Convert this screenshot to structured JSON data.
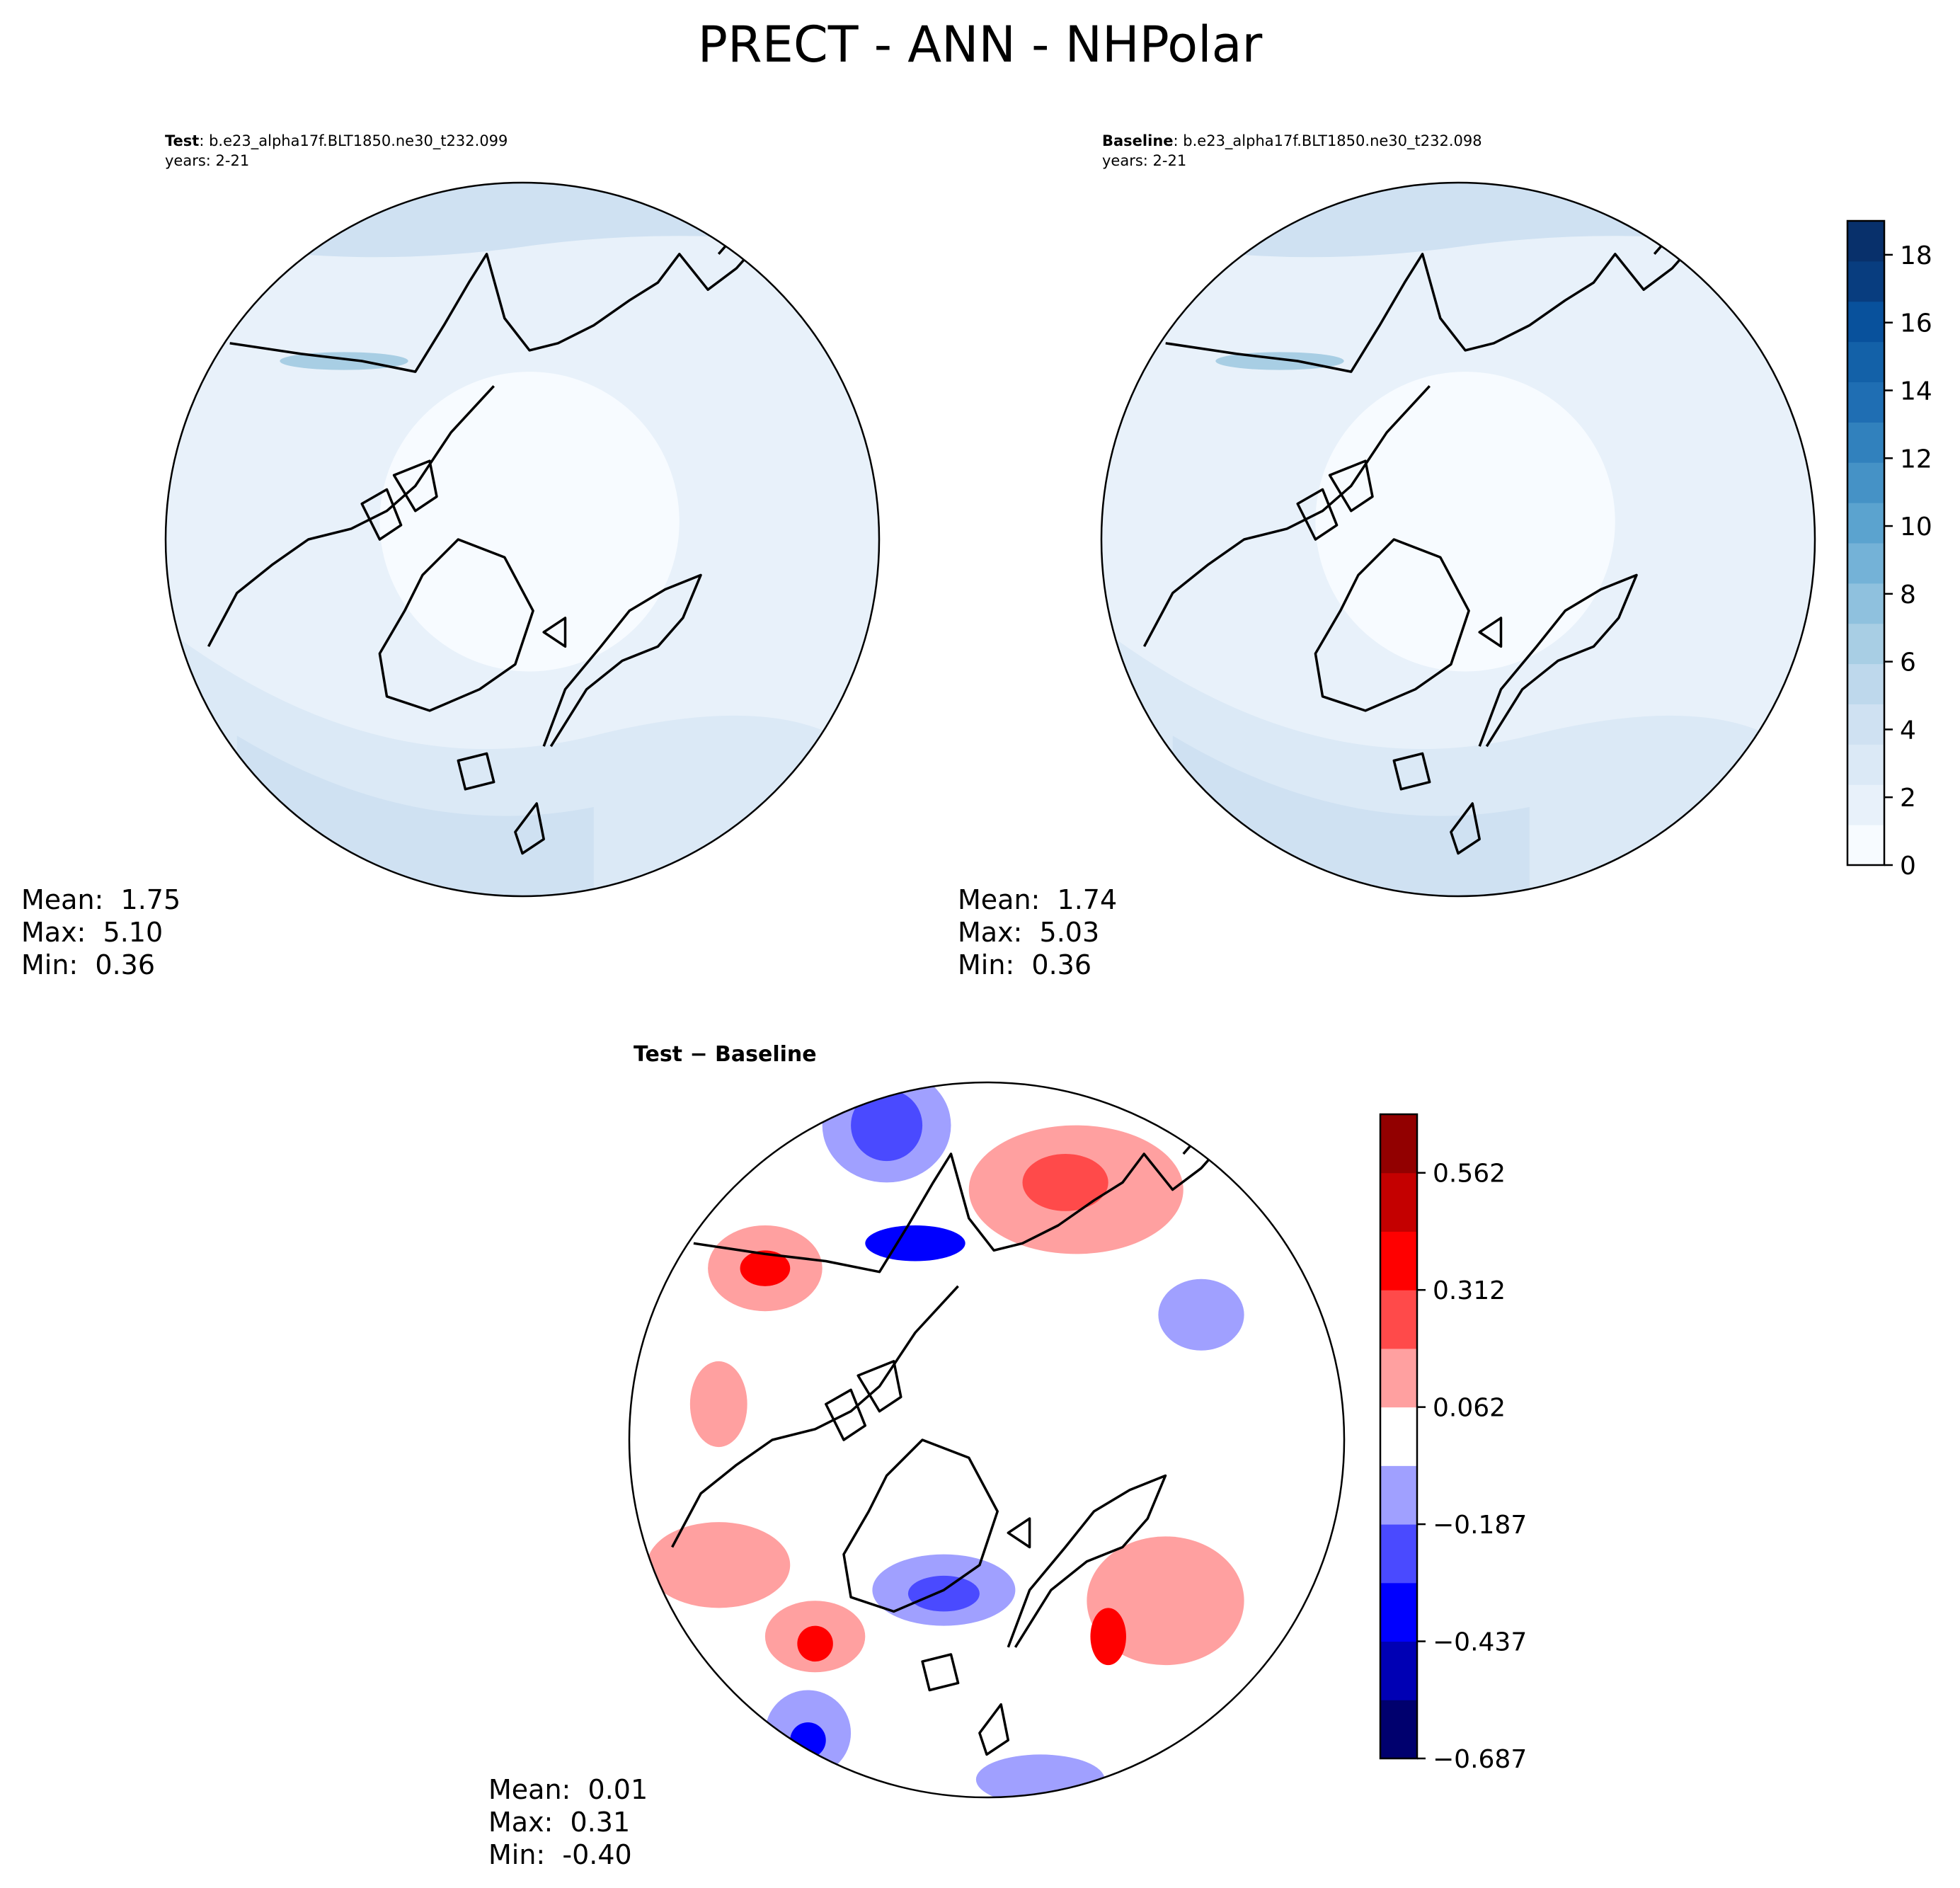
{
  "figure": {
    "title": "PRECT - ANN - NHPolar"
  },
  "panels": {
    "test": {
      "label": "Test",
      "sep": ":",
      "case": "b.e23_alpha17f.BLT1850.ne30_t232.099",
      "years": "years: 2-21",
      "stats": {
        "mean_label": "Mean:",
        "mean": "1.75",
        "max_label": "Max:",
        "max": "5.10",
        "min_label": "Min:",
        "min": "0.36"
      }
    },
    "baseline": {
      "label": "Baseline",
      "sep": ":",
      "case": "b.e23_alpha17f.BLT1850.ne30_t232.098",
      "years": "years: 2-21",
      "stats": {
        "mean_label": "Mean:",
        "mean": "1.74",
        "max_label": "Max:",
        "max": "5.03",
        "min_label": "Min:",
        "min": "0.36"
      }
    },
    "diff": {
      "title": "Test − Baseline",
      "stats": {
        "mean_label": "Mean:",
        "mean": "0.01",
        "max_label": "Max:",
        "max": "0.31",
        "min_label": "Min:",
        "min": "-0.40"
      }
    }
  },
  "colors": {
    "blues": [
      "#f7fbff",
      "#e8f1fa",
      "#dbe9f6",
      "#cfe1f2",
      "#bed8ec",
      "#a8cee4",
      "#8fc1de",
      "#74b2d7",
      "#5ba3cf",
      "#4592c6",
      "#3181bd",
      "#1f6eb3",
      "#1361a8",
      "#08519c",
      "#083d7f",
      "#08306b"
    ],
    "diverging": [
      "#00006e",
      "#0000b4",
      "#0000ff",
      "#4a4aff",
      "#a0a0ff",
      "#ffffff",
      "#ffa0a0",
      "#ff4a4a",
      "#ff0000",
      "#c40000",
      "#920000"
    ],
    "land_line": "#000000"
  },
  "chart_data": [
    {
      "type": "contour-map",
      "projection": "north polar stereographic",
      "name": "test",
      "variable": "PRECT",
      "season": "ANN",
      "region": "NHPolar",
      "mean": 1.75,
      "max": 5.1,
      "min": 0.36
    },
    {
      "type": "contour-map",
      "projection": "north polar stereographic",
      "name": "baseline",
      "variable": "PRECT",
      "season": "ANN",
      "region": "NHPolar",
      "mean": 1.74,
      "max": 5.03,
      "min": 0.36,
      "colorbar": {
        "range": [
          0,
          19
        ],
        "ticks": [
          "0",
          "2",
          "4",
          "6",
          "8",
          "10",
          "12",
          "14",
          "16",
          "18"
        ],
        "levels": 16
      }
    },
    {
      "type": "contour-map",
      "projection": "north polar stereographic",
      "name": "diff",
      "mean": 0.01,
      "max": 0.31,
      "min": -0.4,
      "colorbar": {
        "range": [
          -0.6875,
          0.6875
        ],
        "ticks": [
          "0.562",
          "0.312",
          "0.062",
          "−0.187",
          "−0.437",
          "−0.687"
        ],
        "tick_values": [
          0.5625,
          0.3125,
          0.0625,
          -0.1875,
          -0.4375,
          -0.6875
        ],
        "levels": 11
      }
    }
  ]
}
